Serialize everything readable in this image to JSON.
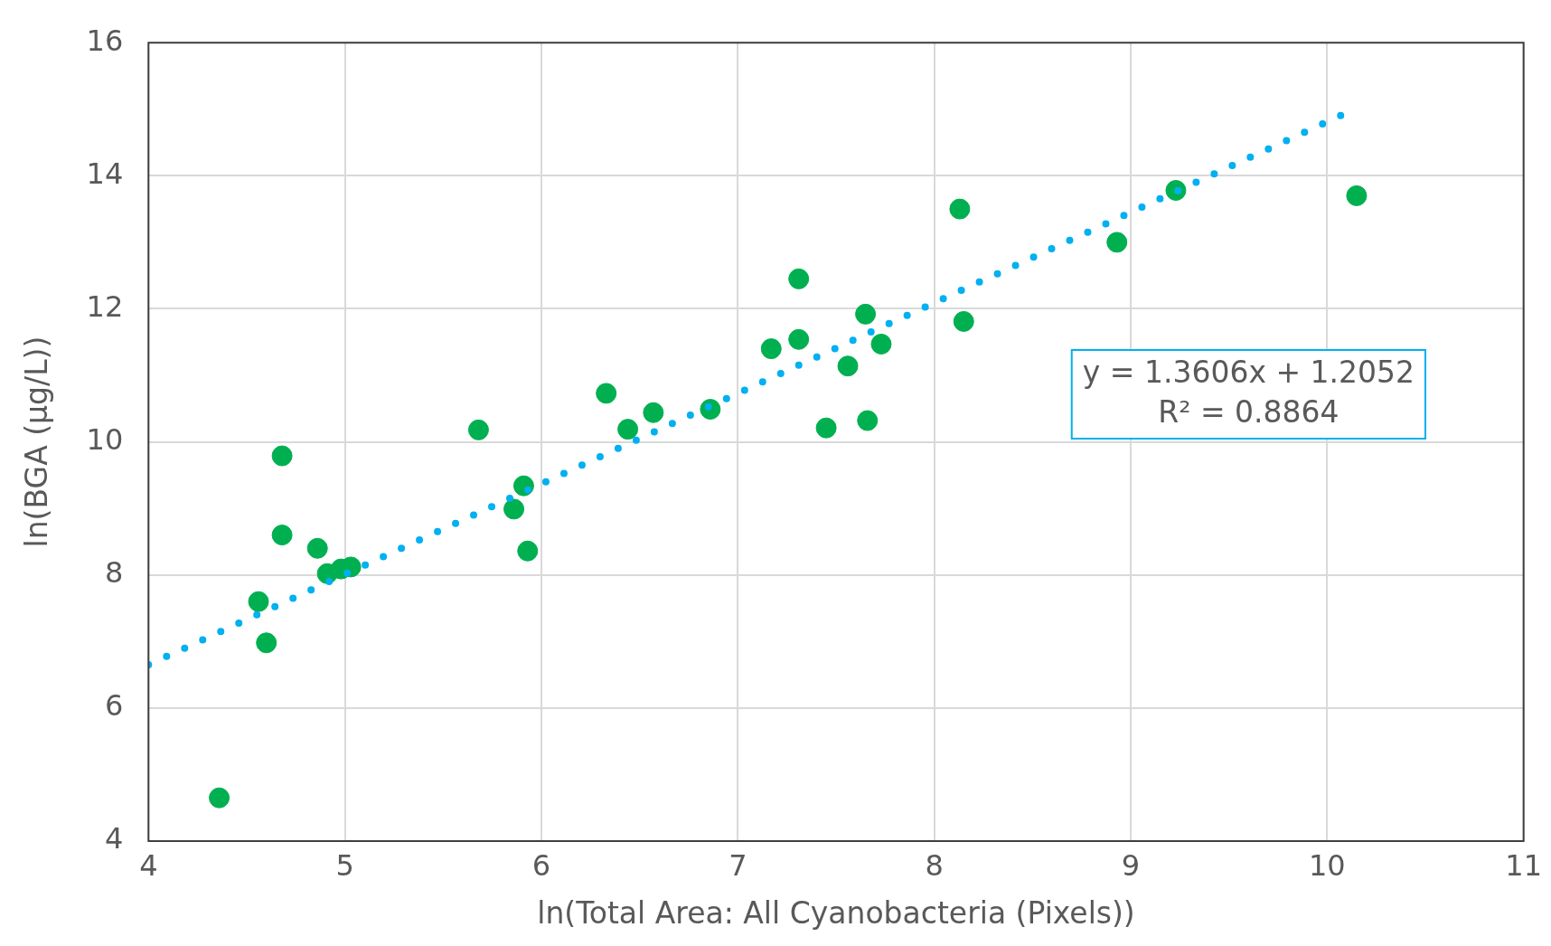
{
  "chart_data": {
    "type": "scatter",
    "xlabel": "ln(Total Area: All Cyanobacteria (Pixels))",
    "ylabel": "ln(BGA (µg/L))",
    "xlim": [
      4,
      11
    ],
    "xticks": [
      4,
      5,
      6,
      7,
      8,
      9,
      10,
      11
    ],
    "ylim": [
      4,
      16
    ],
    "yticks": [
      4,
      6,
      8,
      10,
      12,
      14,
      16
    ],
    "grid": true,
    "legend": false,
    "series": [
      {
        "marker": "circle",
        "color": "#00b050",
        "x": [
          4.36,
          4.56,
          4.6,
          4.68,
          4.68,
          4.86,
          4.91,
          4.98,
          5.03,
          5.68,
          5.86,
          5.91,
          5.93,
          6.33,
          6.44,
          6.57,
          6.86,
          7.17,
          7.31,
          7.31,
          7.45,
          7.56,
          7.65,
          7.66,
          7.73,
          8.13,
          8.15,
          8.93,
          9.23,
          10.15
        ],
        "values": [
          4.65,
          7.6,
          6.98,
          9.79,
          8.6,
          8.4,
          8.02,
          8.09,
          8.12,
          10.18,
          8.99,
          9.34,
          8.36,
          10.73,
          10.19,
          10.44,
          10.49,
          11.4,
          12.45,
          11.54,
          10.21,
          11.14,
          11.92,
          10.32,
          11.47,
          13.5,
          11.81,
          13.0,
          13.78,
          13.7
        ]
      },
      {
        "type": "line",
        "color": "#00b0f0",
        "line_style": "dotted",
        "x": [
          4,
          10.11
        ],
        "values": [
          6.65,
          14.96
        ]
      }
    ],
    "annotations": [
      "y = 1.3606x + 1.2052",
      "R² = 0.8864"
    ]
  }
}
